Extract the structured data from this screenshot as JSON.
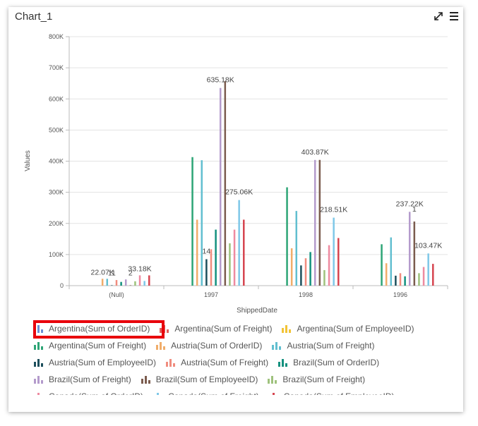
{
  "window": {
    "title": "Chart_1",
    "expand_icon": "expand-arrows-icon",
    "menu_icon": "hamburger-menu-icon"
  },
  "chart_data": {
    "type": "bar",
    "xlabel": "ShippedDate",
    "ylabel": "Values",
    "ylim": [
      0,
      800000
    ],
    "yticks": [
      0,
      100000,
      200000,
      300000,
      400000,
      500000,
      600000,
      700000,
      800000
    ],
    "ytick_labels": [
      "0",
      "100K",
      "200K",
      "300K",
      "400K",
      "500K",
      "600K",
      "700K",
      "800K"
    ],
    "grid": true,
    "legend_position": "bottom",
    "categories": [
      "(Null)",
      "1997",
      "1998",
      "1996"
    ],
    "series": [
      {
        "name": "Argentina(Sum of OrderID)",
        "color": "#6b8fd6",
        "values": [
          null,
          null,
          null,
          null
        ]
      },
      {
        "name": "Argentina(Sum of Freight)",
        "color": "#e2615c",
        "values": [
          null,
          null,
          null,
          null
        ]
      },
      {
        "name": "Argentina(Sum of EmployeeID)",
        "color": "#f2c335",
        "values": [
          null,
          null,
          null,
          null
        ]
      },
      {
        "name": "Argentina(Sum of Freight)",
        "color": "#2ea576",
        "values": [
          null,
          413000,
          316000,
          133000
        ]
      },
      {
        "name": "Austria(Sum of OrderID)",
        "color": "#f0ad6a",
        "values": [
          22070,
          212000,
          120000,
          72000
        ]
      },
      {
        "name": "Austria(Sum of Freight)",
        "color": "#62bfd0",
        "values": [
          22000,
          403000,
          240000,
          155000
        ]
      },
      {
        "name": "Austria(Sum of EmployeeID)",
        "color": "#1d4f5c",
        "values": [
          11,
          85000,
          65000,
          32000
        ]
      },
      {
        "name": "Austria(Sum of Freight)",
        "color": "#f08c7e",
        "values": [
          18000,
          117000,
          88000,
          40000
        ]
      },
      {
        "name": "Brazil(Sum of OrderID)",
        "color": "#14917f",
        "values": [
          12000,
          180000,
          108000,
          30000
        ]
      },
      {
        "name": "Brazil(Sum of Freight)",
        "color": "#b49bcc",
        "values": [
          20000,
          635180,
          403870,
          237220
        ]
      },
      {
        "name": "Brazil(Sum of EmployeeID)",
        "color": "#7b5c4e",
        "values": [
          2,
          657000,
          404000,
          206000
        ]
      },
      {
        "name": "Brazil(Sum of Freight)",
        "color": "#9fc27d",
        "values": [
          14000,
          136000,
          50000,
          40000
        ]
      },
      {
        "name": "Canada(Sum of OrderID)",
        "color": "#ee8aa0",
        "values": [
          33180,
          180000,
          130000,
          60000
        ]
      },
      {
        "name": "Canada(Sum of Freight)",
        "color": "#7fc8e8",
        "values": [
          15000,
          275060,
          218510,
          103470
        ]
      },
      {
        "name": "Canada(Sum of EmployeeID)",
        "color": "#d64550",
        "values": [
          33000,
          212000,
          153000,
          70000
        ]
      }
    ],
    "data_labels": [
      {
        "category": "(Null)",
        "text": "22.07K"
      },
      {
        "category": "(Null)",
        "text": "11"
      },
      {
        "category": "(Null)",
        "text": "2"
      },
      {
        "category": "(Null)",
        "text": "33.18K"
      },
      {
        "category": "1997",
        "text": "635.18K"
      },
      {
        "category": "1997",
        "text": "275.06K"
      },
      {
        "category": "1997",
        "text": "14"
      },
      {
        "category": "1998",
        "text": "403.87K"
      },
      {
        "category": "1998",
        "text": "218.51K"
      },
      {
        "category": "1996",
        "text": "237.22K"
      },
      {
        "category": "1996",
        "text": "1"
      },
      {
        "category": "1996",
        "text": "103.47K"
      }
    ]
  },
  "legend": {
    "rows": [
      [
        {
          "label": "Argentina(Sum of OrderID)",
          "color": "#6b8fd6",
          "highlighted": true
        },
        {
          "label": "Argentina(Sum of Freight)",
          "color": "#e2615c"
        },
        {
          "label": "Argentina(Sum of EmployeeID)",
          "color": "#f2c335"
        }
      ],
      [
        {
          "label": "Argentina(Sum of Freight)",
          "color": "#2ea576"
        },
        {
          "label": "Austria(Sum of OrderID)",
          "color": "#f0ad6a"
        },
        {
          "label": "Austria(Sum of Freight)",
          "color": "#62bfd0"
        }
      ],
      [
        {
          "label": "Austria(Sum of EmployeeID)",
          "color": "#1d4f5c"
        },
        {
          "label": "Austria(Sum of Freight)",
          "color": "#f08c7e"
        },
        {
          "label": "Brazil(Sum of OrderID)",
          "color": "#14917f"
        }
      ],
      [
        {
          "label": "Brazil(Sum of Freight)",
          "color": "#b49bcc"
        },
        {
          "label": "Brazil(Sum of EmployeeID)",
          "color": "#7b5c4e"
        },
        {
          "label": "Brazil(Sum of Freight)",
          "color": "#9fc27d"
        }
      ],
      [
        {
          "label": "Canada(Sum of OrderID)",
          "color": "#ee8aa0"
        },
        {
          "label": "Canada(Sum of Freight)",
          "color": "#7fc8e8"
        },
        {
          "label": "Canada(Sum of EmployeeID)",
          "color": "#d64550"
        }
      ]
    ]
  }
}
